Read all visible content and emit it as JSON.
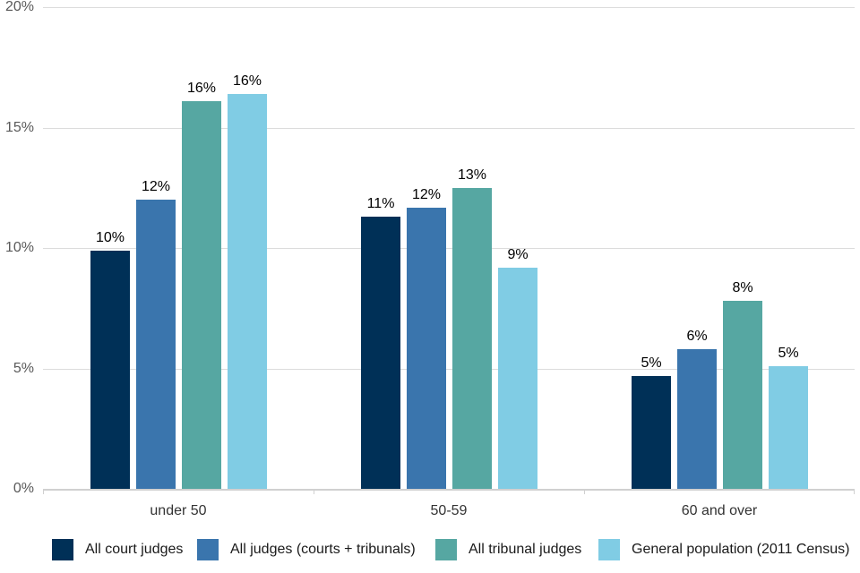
{
  "chart_data": {
    "type": "bar",
    "title": "",
    "categories": [
      "under 50",
      "50-59",
      "60 and over"
    ],
    "series": [
      {
        "name": "All court judges",
        "color": "#003057",
        "values": [
          9.9,
          11.3,
          4.7
        ],
        "labels": [
          "10%",
          "11%",
          "5%"
        ]
      },
      {
        "name": "All judges (courts + tribunals)",
        "color": "#3a75ad",
        "values": [
          12.0,
          11.7,
          5.8
        ],
        "labels": [
          "12%",
          "12%",
          "6%"
        ]
      },
      {
        "name": "All tribunal judges",
        "color": "#56a7a2",
        "values": [
          16.1,
          12.5,
          7.8
        ],
        "labels": [
          "16%",
          "13%",
          "8%"
        ]
      },
      {
        "name": "General population (2011 Census)",
        "color": "#80cce4",
        "values": [
          16.4,
          9.2,
          5.1
        ],
        "labels": [
          "16%",
          "9%",
          "5%"
        ]
      }
    ],
    "y_axis": {
      "ticks": [
        "0%",
        "5%",
        "10%",
        "15%",
        "20%"
      ],
      "tick_values": [
        0,
        5,
        10,
        15,
        20
      ],
      "min": 0,
      "max": 20,
      "grid": true
    },
    "legend_position": "bottom"
  },
  "colors": {
    "grid": "#dcdcdc",
    "axis_line": "#d0d0d0",
    "y_label": "#595959",
    "category_label": "#333333",
    "value_label": "#000000",
    "background": "#ffffff"
  }
}
